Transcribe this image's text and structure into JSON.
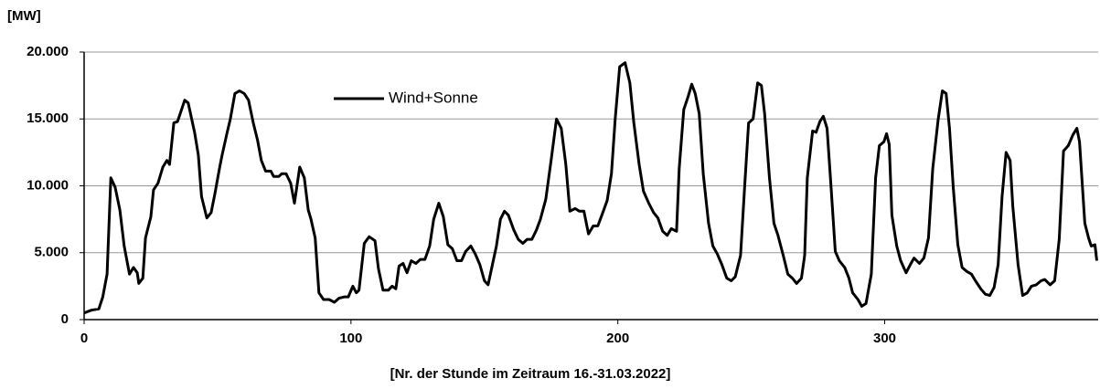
{
  "chart_data": {
    "type": "line",
    "ylabel": "[MW]",
    "xlabel": "[Nr. der Stunde im Zeitraum 16.-31.03.2022]",
    "x": [
      0,
      2.7,
      5.5,
      7,
      8.6,
      10,
      11.6,
      13.4,
      15,
      17,
      18.5,
      19.9,
      20.5,
      22,
      23,
      25,
      26,
      27.7,
      29.5,
      31,
      32,
      33.6,
      35,
      36,
      37.7,
      39,
      41.4,
      42.8,
      44,
      46,
      47.6,
      49,
      50.7,
      51.7,
      53.4,
      54.8,
      56.5,
      58.2,
      60,
      61.6,
      63.4,
      65,
      66.4,
      68,
      70,
      71,
      73,
      74,
      75.7,
      77.4,
      78.8,
      80.8,
      82.5,
      84,
      85,
      86.6,
      88,
      89.7,
      91.8,
      93.8,
      95.5,
      97.6,
      99,
      100.7,
      102,
      103,
      105,
      106.8,
      109,
      110.3,
      112,
      114,
      115.4,
      116.8,
      118,
      119.5,
      121,
      122.6,
      124.3,
      126,
      127.7,
      129.5,
      131,
      132.9,
      134.6,
      136.3,
      138,
      139.7,
      141.4,
      143,
      144.9,
      146.6,
      148.3,
      150,
      151.4,
      153,
      154.5,
      156,
      157.5,
      159,
      161,
      162.7,
      164.4,
      166,
      167.8,
      169.5,
      171,
      173,
      175,
      177,
      178.8,
      180.5,
      182,
      184,
      185.6,
      187.3,
      189,
      190.8,
      192.5,
      194,
      196,
      197.6,
      199,
      200.7,
      202.7,
      204.5,
      206,
      208,
      209.6,
      211.6,
      213.4,
      215,
      216.8,
      218.5,
      220,
      222,
      223,
      224.7,
      226.4,
      227.7,
      229,
      230.5,
      232,
      234,
      235.6,
      237.3,
      239,
      240.8,
      242.5,
      244,
      246,
      247.6,
      249,
      250.7,
      252.4,
      253.8,
      255,
      256.8,
      258.5,
      260,
      262,
      263.7,
      265.4,
      267,
      268.8,
      270,
      271,
      273,
      274.3,
      275.7,
      277,
      278.4,
      279.8,
      281.5,
      283,
      285,
      286.6,
      288,
      290,
      291.4,
      293,
      295,
      296.6,
      298,
      299.7,
      300.7,
      301.7,
      302.7,
      304.5,
      306,
      308,
      309.6,
      311,
      313,
      314.7,
      316.4,
      318,
      320,
      321.6,
      323,
      324.3,
      325.7,
      327.4,
      329,
      330.8,
      332.5,
      334,
      336,
      337.7,
      339.4,
      341,
      342.5,
      344,
      345.5,
      347,
      348,
      350,
      351.7,
      353.4,
      355,
      356.8,
      358.6,
      360,
      362,
      363.7,
      365.4,
      367,
      368.8,
      370.5,
      372,
      373,
      375,
      376.4,
      377.4,
      378.8,
      379.5
    ],
    "series": [
      {
        "name": "Wind+Sonne",
        "color": "#000000",
        "values": [
          500,
          700,
          800,
          1700,
          3400,
          10600,
          9900,
          8200,
          5500,
          3400,
          3900,
          3500,
          2700,
          3100,
          6100,
          7700,
          9700,
          10200,
          11400,
          11900,
          11600,
          14700,
          14800,
          15400,
          16400,
          16200,
          14000,
          12300,
          9200,
          7600,
          8000,
          9400,
          11300,
          12300,
          13800,
          15000,
          16900,
          17100,
          16900,
          16400,
          14700,
          13400,
          11900,
          11100,
          11100,
          10700,
          10700,
          10900,
          10900,
          10200,
          8700,
          11400,
          10600,
          8200,
          7500,
          6100,
          2000,
          1500,
          1500,
          1300,
          1600,
          1700,
          1700,
          2500,
          2000,
          2200,
          5700,
          6200,
          5900,
          3800,
          2200,
          2200,
          2500,
          2300,
          4000,
          4200,
          3500,
          4400,
          4200,
          4500,
          4500,
          5500,
          7500,
          8700,
          7700,
          5600,
          5300,
          4400,
          4400,
          5100,
          5500,
          4900,
          4100,
          2900,
          2600,
          4100,
          5500,
          7500,
          8100,
          7800,
          6700,
          6000,
          5700,
          6000,
          6000,
          6700,
          7500,
          9000,
          11900,
          15000,
          14300,
          11600,
          8100,
          8300,
          8100,
          8100,
          6400,
          7000,
          7000,
          7800,
          8900,
          10900,
          15000,
          18900,
          19200,
          17700,
          14700,
          11600,
          9600,
          8700,
          8000,
          7600,
          6600,
          6300,
          6800,
          6600,
          11300,
          15700,
          16700,
          17600,
          16900,
          15400,
          10900,
          7200,
          5500,
          4900,
          4100,
          3100,
          2900,
          3200,
          4800,
          10200,
          14700,
          15000,
          17700,
          17500,
          15400,
          10600,
          7200,
          6300,
          4800,
          3400,
          3100,
          2700,
          3100,
          4800,
          10600,
          14100,
          14000,
          14800,
          15200,
          14300,
          10200,
          5100,
          4400,
          3900,
          3100,
          2000,
          1500,
          1000,
          1200,
          3400,
          10600,
          13000,
          13300,
          13900,
          13100,
          7800,
          5500,
          4400,
          3500,
          4100,
          4600,
          4200,
          4600,
          6100,
          11300,
          14900,
          17100,
          16900,
          14300,
          9900,
          5600,
          3900,
          3600,
          3400,
          2900,
          2300,
          1900,
          1800,
          2400,
          4100,
          9200,
          12500,
          11900,
          8500,
          4100,
          1800,
          2000,
          2500,
          2600,
          2900,
          3000,
          2600,
          2900,
          6000,
          12600,
          13000,
          13800,
          14300,
          13300,
          7200,
          6100,
          5500,
          5600,
          4400
        ]
      }
    ],
    "xlim": [
      0,
      380
    ],
    "xticks": [
      0,
      100,
      200,
      300
    ],
    "ylim": [
      0,
      20000
    ],
    "yticks": [
      0,
      {
        "value": 5000,
        "label": "5.000"
      },
      {
        "value": 10000,
        "label": "10.000"
      },
      {
        "value": 15000,
        "label": "15.000"
      },
      {
        "value": 20000,
        "label": "20.000"
      }
    ],
    "grid": true
  }
}
